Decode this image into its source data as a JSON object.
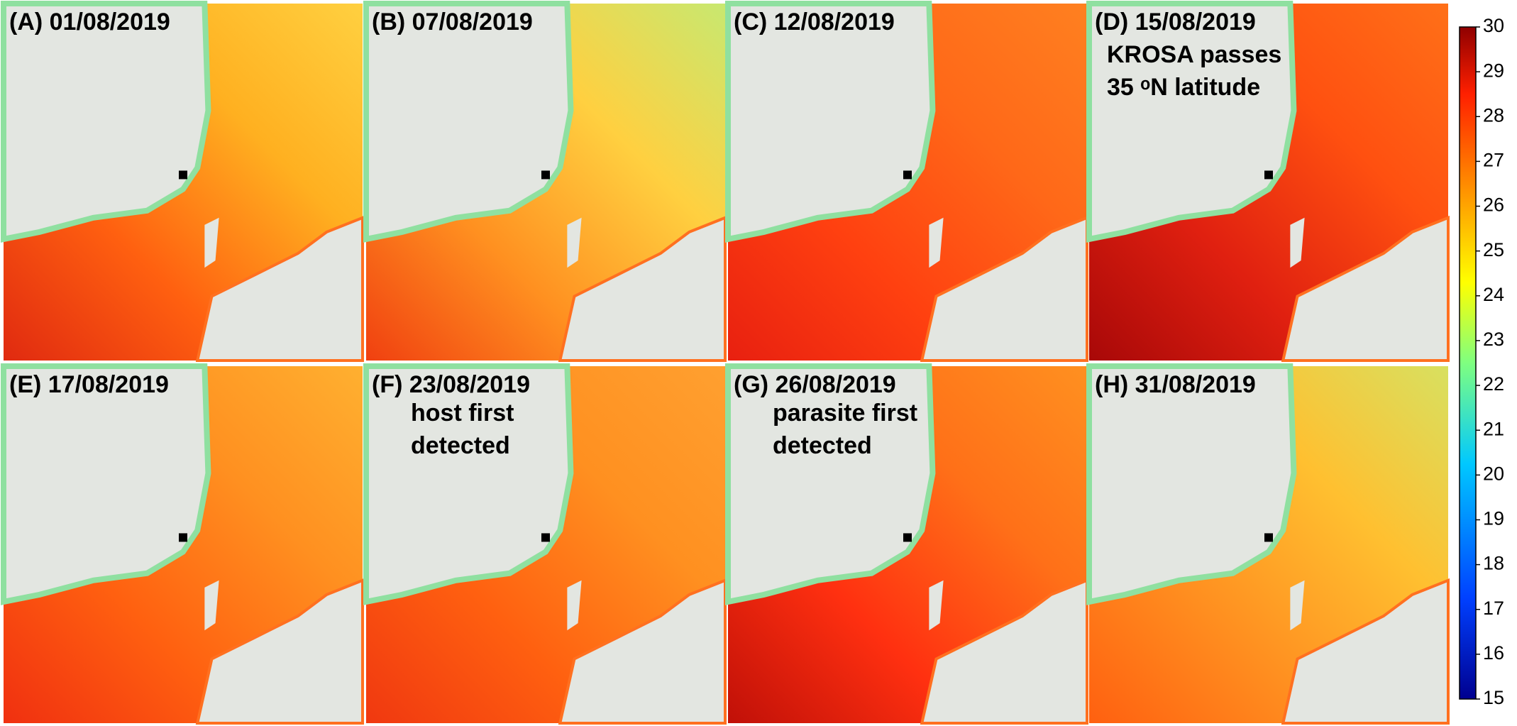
{
  "panels": [
    {
      "label": "(A) 01/08/2019"
    },
    {
      "label": "(B) 07/08/2019"
    },
    {
      "label": "(C) 12/08/2019"
    },
    {
      "label": "(D) 15/08/2019",
      "annotation": [
        "KROSA passes",
        "35 ᵒN latitude"
      ]
    },
    {
      "label": "(E) 17/08/2019"
    },
    {
      "label": "(F) 23/08/2019",
      "annotation": [
        "host first",
        "detected"
      ]
    },
    {
      "label": "(G) 26/08/2019",
      "annotation": [
        "parasite first",
        "detected"
      ]
    },
    {
      "label": "(H) 31/08/2019"
    }
  ],
  "colorbar": {
    "range": [
      15,
      30
    ],
    "ticks": [
      15,
      16,
      17,
      18,
      19,
      20,
      21,
      22,
      23,
      24,
      25,
      26,
      27,
      28,
      29,
      30
    ]
  }
}
